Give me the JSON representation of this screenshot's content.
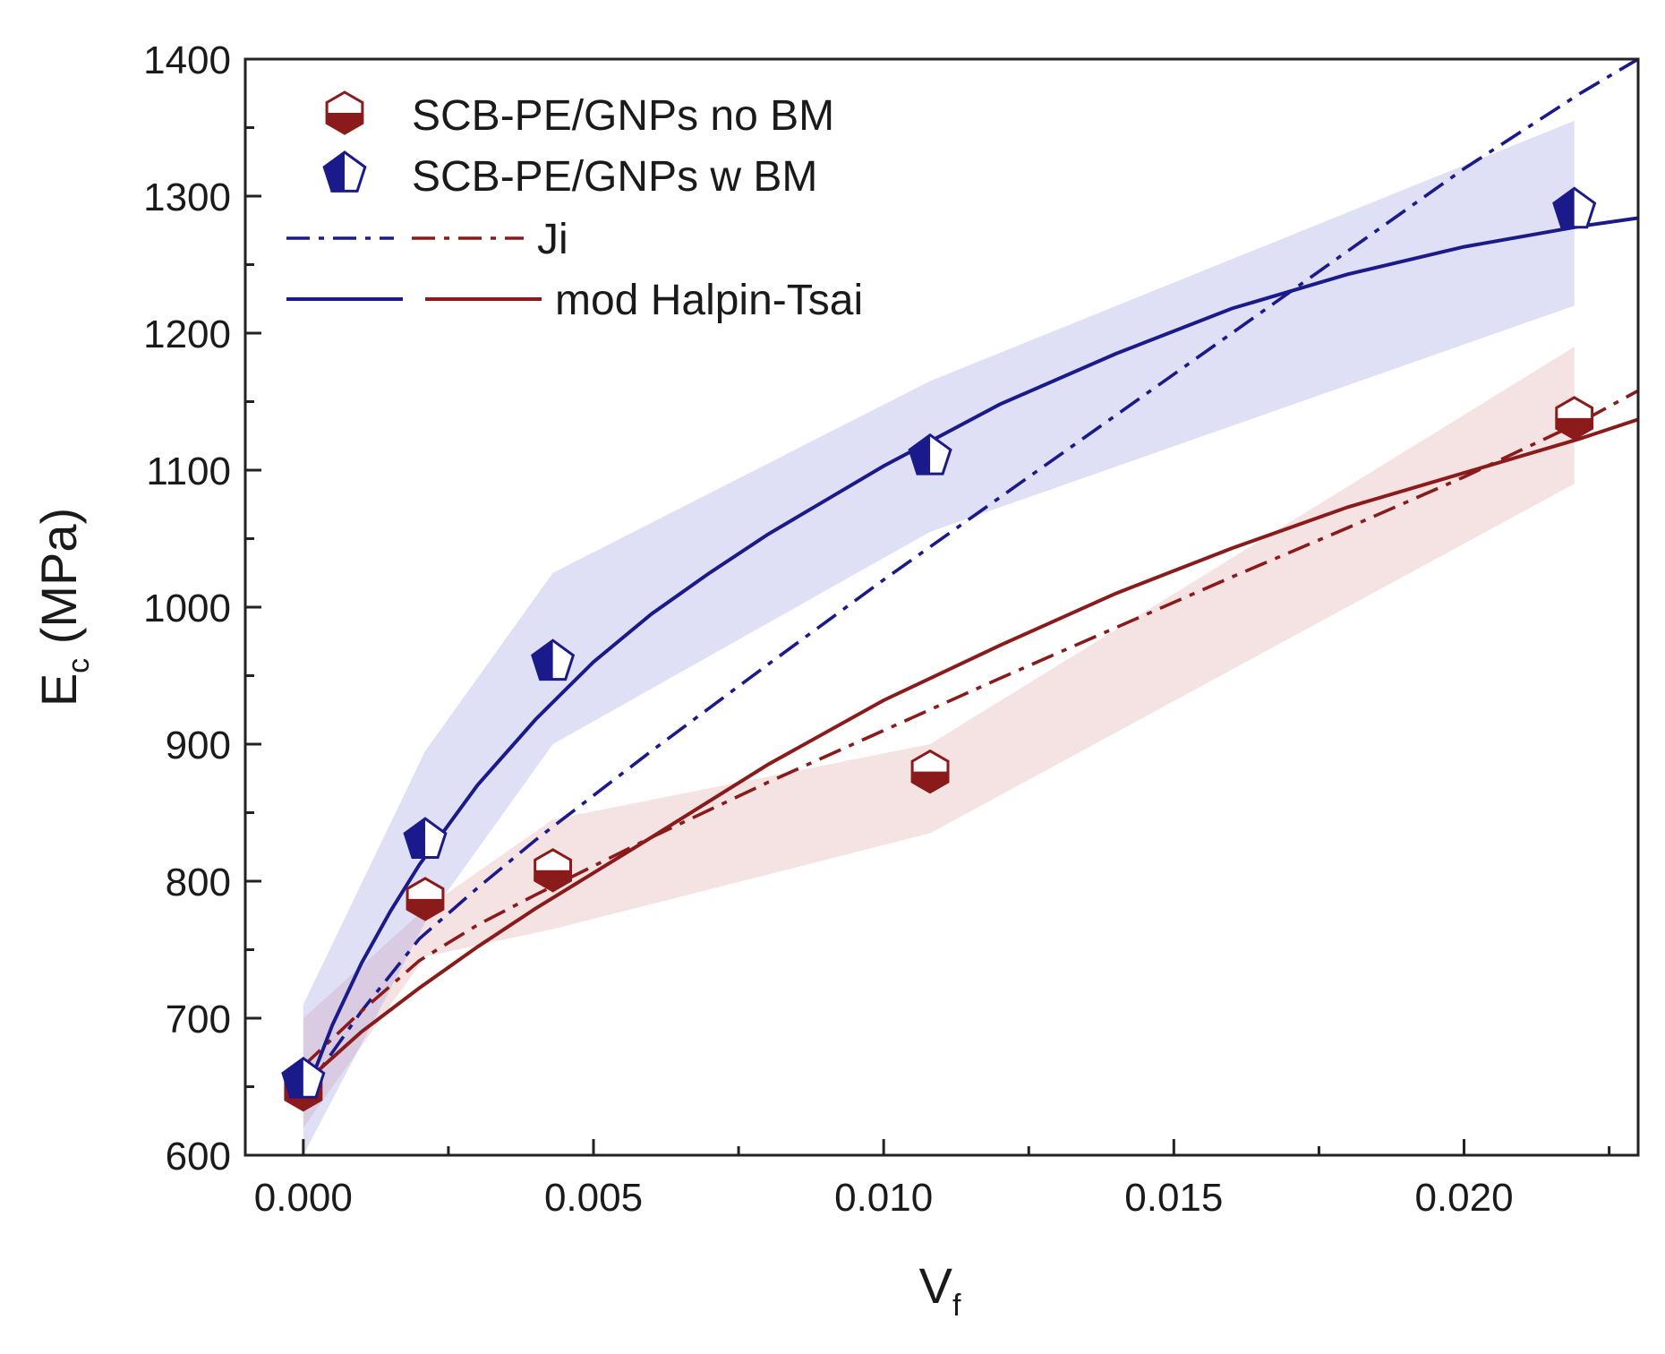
{
  "chart_data": {
    "type": "scatter",
    "title": "",
    "xlabel": {
      "main": "V",
      "sub": "f"
    },
    "ylabel": {
      "main": "E",
      "sub": "c",
      "suffix": " (MPa)"
    },
    "xlim": [
      -0.001,
      0.023
    ],
    "ylim": [
      600,
      1400
    ],
    "xticks": [
      0.0,
      0.005,
      0.01,
      0.015,
      0.02
    ],
    "xtick_labels": [
      "0.000",
      "0.005",
      "0.010",
      "0.015",
      "0.020"
    ],
    "xminor": [
      0.0025,
      0.0075,
      0.0125,
      0.0175,
      0.0225
    ],
    "yticks": [
      600,
      700,
      800,
      900,
      1000,
      1100,
      1200,
      1300,
      1400
    ],
    "ytick_labels": [
      "600",
      "700",
      "800",
      "900",
      "1000",
      "1100",
      "1200",
      "1300",
      "1400"
    ],
    "yminor": [
      650,
      750,
      850,
      950,
      1050,
      1150,
      1250,
      1350
    ],
    "series": [
      {
        "name": "SCB-PE/GNPs no BM",
        "marker": "hexagon-half",
        "color": "#8b1a1a",
        "x": [
          0.0,
          0.0021,
          0.0043,
          0.0108,
          0.0219
        ],
        "y": [
          648,
          787,
          808,
          880,
          1138
        ],
        "band_upper": [
          700,
          780,
          845,
          900,
          1190
        ],
        "band_lower": [
          620,
          745,
          765,
          835,
          1090
        ]
      },
      {
        "name": "SCB-PE/GNPs w BM",
        "marker": "pentagon-half",
        "color": "#1a1a8b",
        "x": [
          0.0,
          0.0021,
          0.0043,
          0.0108,
          0.0219
        ],
        "y": [
          655,
          830,
          960,
          1110,
          1290
        ],
        "band_upper": [
          710,
          895,
          1025,
          1165,
          1355
        ],
        "band_lower": [
          600,
          770,
          900,
          1055,
          1220
        ]
      }
    ],
    "model_lines": [
      {
        "name": "Ji",
        "model": "ji",
        "group": "w BM",
        "style": "dashdot",
        "color": "#1a1a8b",
        "x": [
          0.0,
          0.001,
          0.002,
          0.003,
          0.004,
          0.006,
          0.008,
          0.01,
          0.012,
          0.014,
          0.016,
          0.018,
          0.02,
          0.022,
          0.023
        ],
        "y": [
          645,
          705,
          758,
          795,
          830,
          895,
          958,
          1020,
          1080,
          1140,
          1200,
          1260,
          1320,
          1375,
          1400
        ]
      },
      {
        "name": "Ji",
        "model": "ji",
        "group": "no BM",
        "style": "dashdot",
        "color": "#8b1a1a",
        "x": [
          0.0,
          0.001,
          0.002,
          0.003,
          0.004,
          0.006,
          0.008,
          0.01,
          0.012,
          0.014,
          0.016,
          0.018,
          0.02,
          0.022,
          0.023
        ],
        "y": [
          665,
          705,
          742,
          768,
          790,
          832,
          872,
          910,
          948,
          985,
          1022,
          1058,
          1095,
          1135,
          1158
        ]
      },
      {
        "name": "mod Halpin-Tsai",
        "model": "halpin",
        "group": "w BM",
        "style": "solid",
        "color": "#1a1a8b",
        "x": [
          0.0,
          0.0005,
          0.001,
          0.0015,
          0.002,
          0.003,
          0.004,
          0.005,
          0.006,
          0.007,
          0.008,
          0.009,
          0.01,
          0.012,
          0.014,
          0.016,
          0.018,
          0.02,
          0.022,
          0.023
        ],
        "y": [
          640,
          695,
          740,
          778,
          812,
          870,
          918,
          960,
          995,
          1025,
          1053,
          1078,
          1103,
          1148,
          1185,
          1218,
          1243,
          1263,
          1278,
          1284
        ]
      },
      {
        "name": "mod Halpin-Tsai",
        "model": "halpin",
        "group": "no BM",
        "style": "solid",
        "color": "#8b1a1a",
        "x": [
          0.0,
          0.001,
          0.002,
          0.003,
          0.004,
          0.005,
          0.006,
          0.008,
          0.01,
          0.012,
          0.014,
          0.016,
          0.018,
          0.02,
          0.022,
          0.023
        ],
        "y": [
          652,
          690,
          722,
          752,
          780,
          806,
          832,
          885,
          932,
          972,
          1010,
          1043,
          1073,
          1098,
          1123,
          1137
        ]
      }
    ],
    "legend": {
      "position": "top-left",
      "entries": [
        {
          "label": "SCB-PE/GNPs no BM",
          "kind": "marker",
          "ref": "SCB-PE/GNPs no BM"
        },
        {
          "label": "SCB-PE/GNPs w BM",
          "kind": "marker",
          "ref": "SCB-PE/GNPs w BM"
        },
        {
          "label": "Ji",
          "kind": "lines",
          "style": "dashdot"
        },
        {
          "label": "mod Halpin-Tsai",
          "kind": "lines",
          "style": "solid"
        }
      ]
    }
  }
}
